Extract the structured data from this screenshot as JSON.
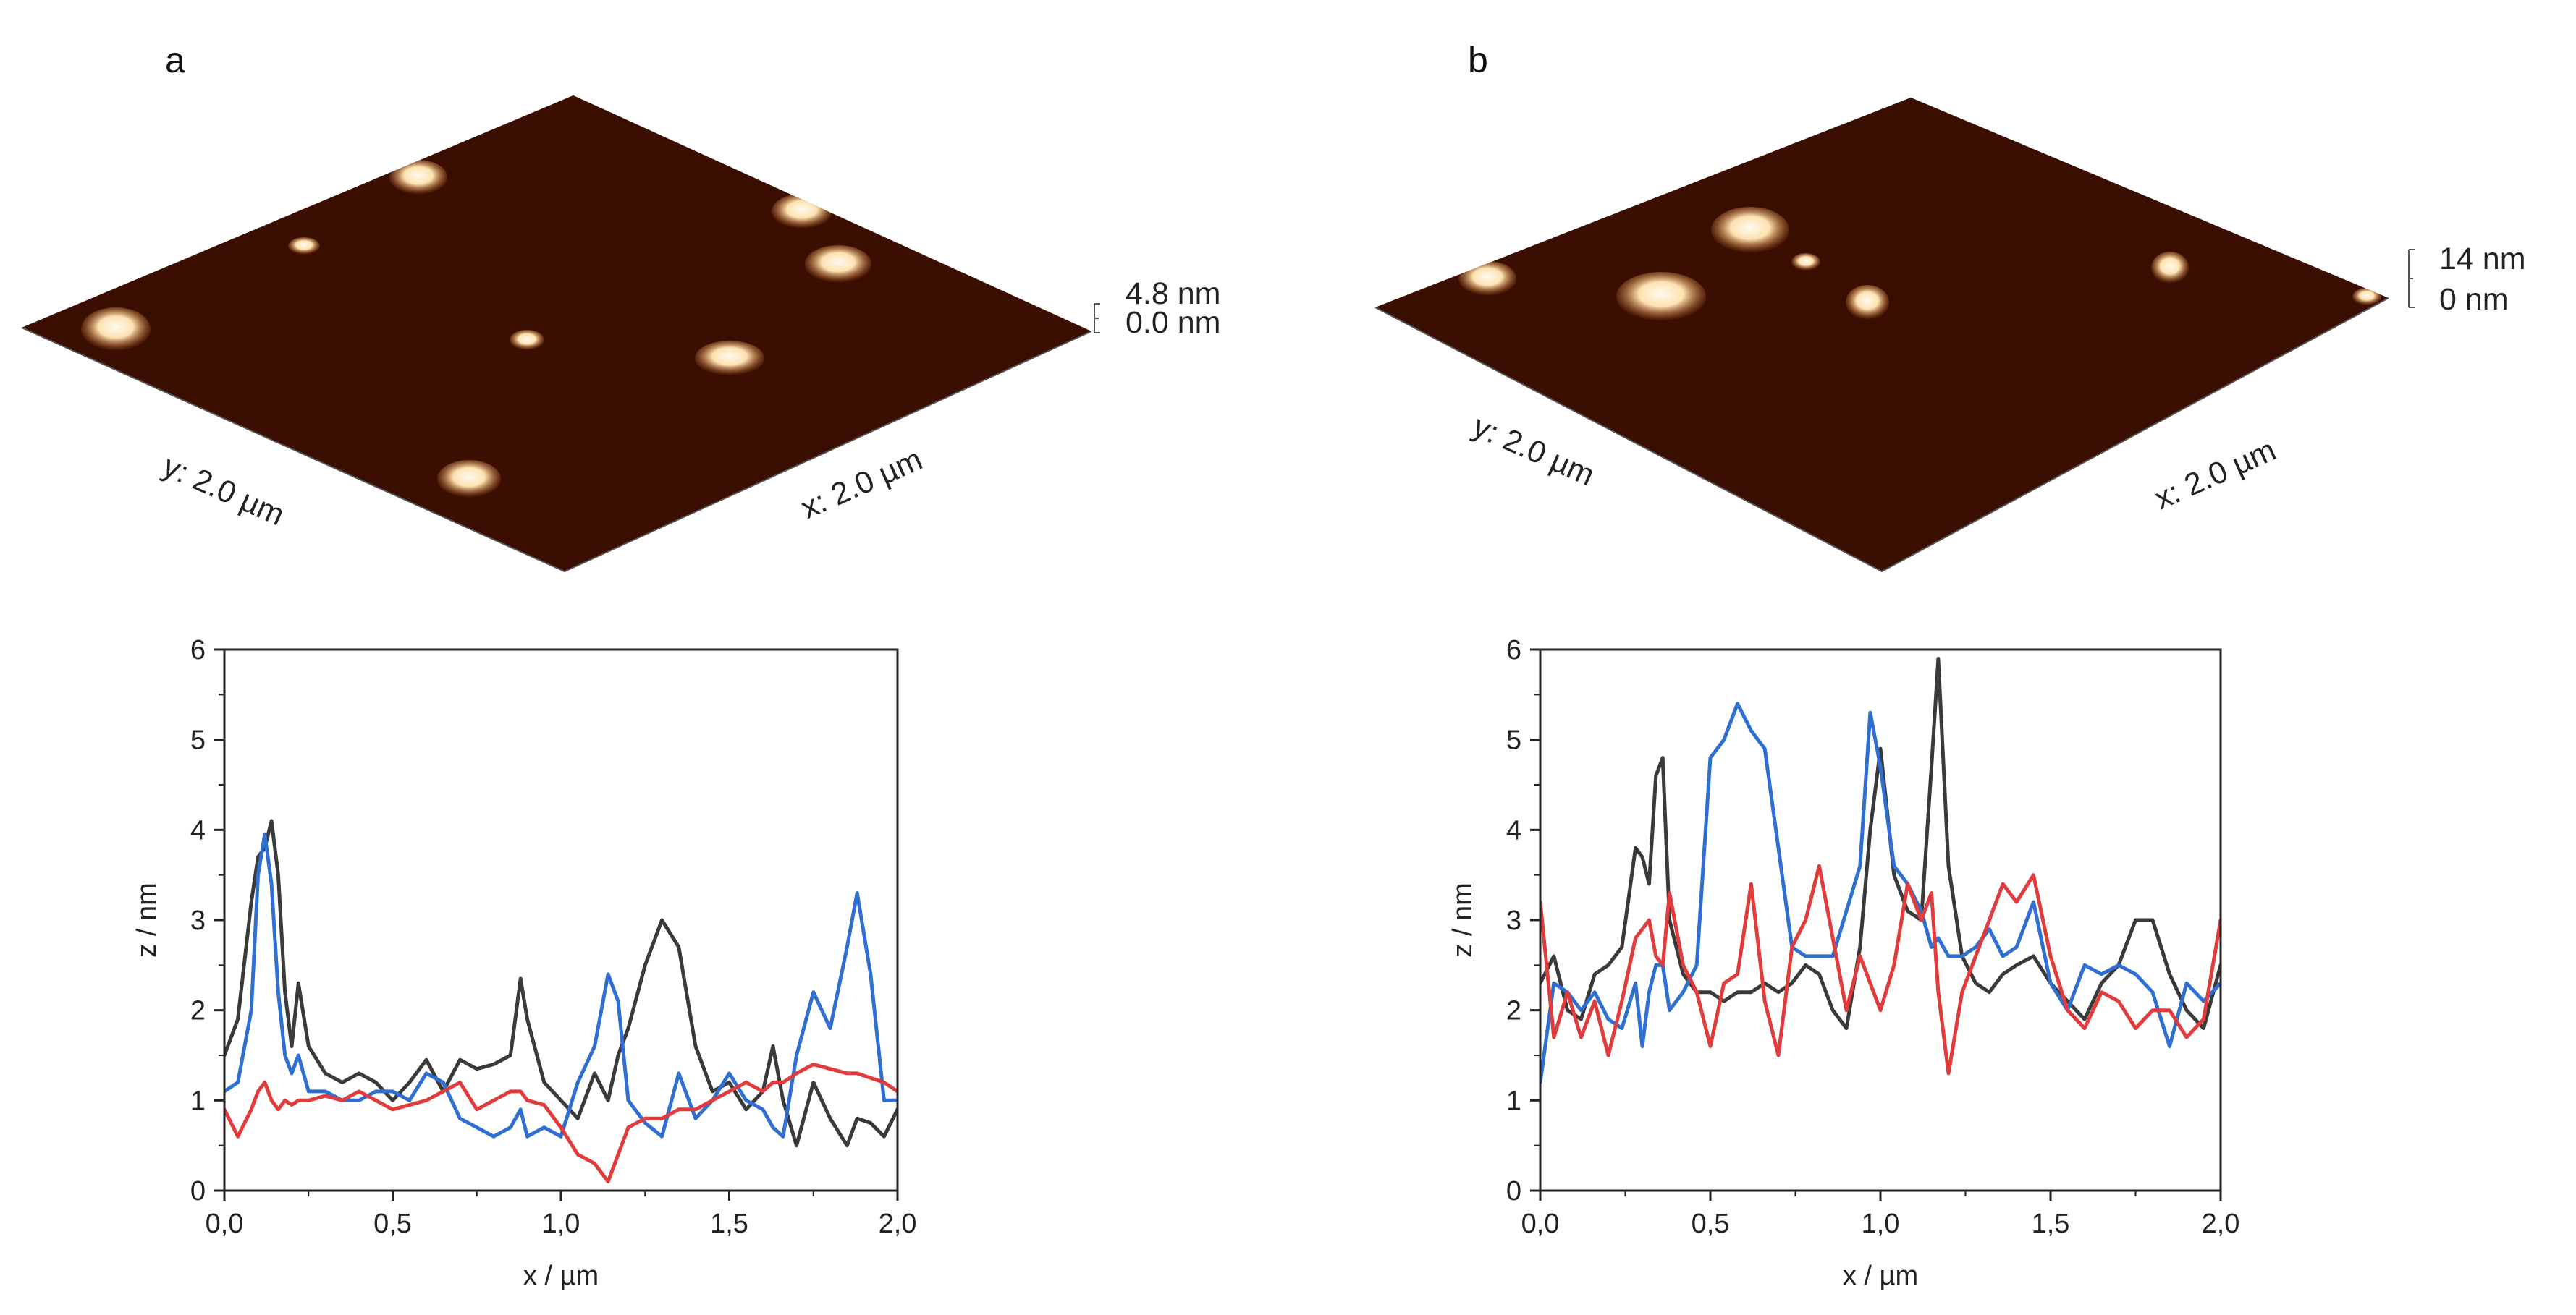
{
  "panels": [
    {
      "label": "a",
      "afm": {
        "x_label": "x: 2.0 µm",
        "y_label": "y: 2.0 µm",
        "z_max_label": "4.8 nm",
        "z_min_label": "0.0 nm",
        "colormap": [
          "#3a0f02",
          "#7a2a06",
          "#b8500f",
          "#d9782e",
          "#f3b56e",
          "#fff1d6"
        ]
      }
    },
    {
      "label": "b",
      "afm": {
        "x_label": "x: 2.0 µm",
        "y_label": "y: 2.0 µm",
        "z_max_label": "14 nm",
        "z_min_label": "0 nm",
        "colormap": [
          "#3a0f02",
          "#7a2a06",
          "#b8500f",
          "#d9782e",
          "#f3b56e",
          "#fff1d6"
        ]
      }
    }
  ],
  "chart_data": [
    {
      "type": "line",
      "panel": "a",
      "xlabel": "x / µm",
      "ylabel": "z / nm",
      "xlim": [
        0.0,
        2.0
      ],
      "ylim": [
        0,
        6
      ],
      "xticks": [
        "0,0",
        "0,5",
        "1,0",
        "1,5",
        "2,0"
      ],
      "yticks": [
        "0",
        "1",
        "2",
        "3",
        "4",
        "5",
        "6"
      ],
      "x": [
        0.0,
        0.04,
        0.08,
        0.1,
        0.12,
        0.14,
        0.16,
        0.18,
        0.2,
        0.22,
        0.25,
        0.3,
        0.35,
        0.4,
        0.45,
        0.5,
        0.55,
        0.6,
        0.65,
        0.7,
        0.75,
        0.8,
        0.85,
        0.88,
        0.9,
        0.95,
        1.0,
        1.05,
        1.1,
        1.14,
        1.17,
        1.2,
        1.25,
        1.3,
        1.35,
        1.4,
        1.45,
        1.5,
        1.55,
        1.6,
        1.63,
        1.66,
        1.7,
        1.75,
        1.8,
        1.85,
        1.88,
        1.92,
        1.96,
        2.0
      ],
      "series": [
        {
          "name": "black",
          "color": "#3a3a3a",
          "values": [
            1.5,
            1.9,
            3.2,
            3.7,
            3.8,
            4.1,
            3.5,
            2.2,
            1.6,
            2.3,
            1.6,
            1.3,
            1.2,
            1.3,
            1.2,
            1.0,
            1.2,
            1.45,
            1.1,
            1.45,
            1.35,
            1.4,
            1.5,
            2.35,
            1.9,
            1.2,
            1.0,
            0.8,
            1.3,
            1.0,
            1.5,
            1.8,
            2.5,
            3.0,
            2.7,
            1.6,
            1.1,
            1.2,
            0.9,
            1.1,
            1.6,
            1.0,
            0.5,
            1.2,
            0.8,
            0.5,
            0.8,
            0.75,
            0.6,
            0.9
          ]
        },
        {
          "name": "blue",
          "color": "#2f6fd1",
          "values": [
            1.1,
            1.2,
            2.0,
            3.5,
            3.95,
            3.4,
            2.2,
            1.5,
            1.3,
            1.5,
            1.1,
            1.1,
            1.0,
            1.0,
            1.1,
            1.1,
            1.0,
            1.3,
            1.2,
            0.8,
            0.7,
            0.6,
            0.7,
            0.9,
            0.6,
            0.7,
            0.6,
            1.2,
            1.6,
            2.4,
            2.1,
            1.0,
            0.75,
            0.6,
            1.3,
            0.8,
            1.0,
            1.3,
            1.0,
            0.9,
            0.7,
            0.6,
            1.5,
            2.2,
            1.8,
            2.7,
            3.3,
            2.4,
            1.0,
            1.0
          ]
        },
        {
          "name": "red",
          "color": "#e23b3b",
          "values": [
            0.9,
            0.6,
            0.9,
            1.1,
            1.2,
            1.0,
            0.9,
            1.0,
            0.95,
            1.0,
            1.0,
            1.05,
            1.0,
            1.1,
            1.0,
            0.9,
            0.95,
            1.0,
            1.1,
            1.2,
            0.9,
            1.0,
            1.1,
            1.1,
            1.0,
            0.95,
            0.7,
            0.4,
            0.3,
            0.1,
            0.4,
            0.7,
            0.8,
            0.8,
            0.9,
            0.9,
            1.0,
            1.1,
            1.2,
            1.1,
            1.2,
            1.2,
            1.3,
            1.4,
            1.35,
            1.3,
            1.3,
            1.25,
            1.2,
            1.1
          ]
        }
      ]
    },
    {
      "type": "line",
      "panel": "b",
      "xlabel": "x / µm",
      "ylabel": "z / nm",
      "xlim": [
        0.0,
        2.0
      ],
      "ylim": [
        0,
        6
      ],
      "xticks": [
        "0,0",
        "0,5",
        "1,0",
        "1,5",
        "2,0"
      ],
      "yticks": [
        "0",
        "1",
        "2",
        "3",
        "4",
        "5",
        "6"
      ],
      "x": [
        0.0,
        0.04,
        0.08,
        0.12,
        0.16,
        0.2,
        0.24,
        0.28,
        0.3,
        0.32,
        0.34,
        0.36,
        0.38,
        0.42,
        0.46,
        0.5,
        0.54,
        0.58,
        0.62,
        0.66,
        0.7,
        0.74,
        0.78,
        0.82,
        0.86,
        0.9,
        0.94,
        0.97,
        1.0,
        1.04,
        1.08,
        1.12,
        1.15,
        1.17,
        1.2,
        1.24,
        1.28,
        1.32,
        1.36,
        1.4,
        1.45,
        1.5,
        1.55,
        1.6,
        1.65,
        1.7,
        1.75,
        1.8,
        1.85,
        1.9,
        1.95,
        2.0
      ],
      "series": [
        {
          "name": "black",
          "color": "#3a3a3a",
          "values": [
            2.3,
            2.6,
            2.0,
            1.9,
            2.4,
            2.5,
            2.7,
            3.8,
            3.7,
            3.4,
            4.6,
            4.8,
            3.0,
            2.4,
            2.2,
            2.2,
            2.1,
            2.2,
            2.2,
            2.3,
            2.2,
            2.3,
            2.5,
            2.4,
            2.0,
            1.8,
            2.7,
            4.0,
            4.9,
            3.5,
            3.1,
            3.0,
            4.7,
            5.9,
            3.6,
            2.6,
            2.3,
            2.2,
            2.4,
            2.5,
            2.6,
            2.3,
            2.1,
            1.9,
            2.3,
            2.5,
            3.0,
            3.0,
            2.4,
            2.0,
            1.8,
            2.5
          ]
        },
        {
          "name": "blue",
          "color": "#2f6fd1",
          "values": [
            1.2,
            2.3,
            2.2,
            2.0,
            2.2,
            1.9,
            1.8,
            2.3,
            1.6,
            2.2,
            2.5,
            2.5,
            2.0,
            2.2,
            2.5,
            4.8,
            5.0,
            5.4,
            5.1,
            4.9,
            3.8,
            2.7,
            2.6,
            2.6,
            2.6,
            3.1,
            3.6,
            5.3,
            4.7,
            3.6,
            3.4,
            3.1,
            2.7,
            2.8,
            2.6,
            2.6,
            2.7,
            2.9,
            2.6,
            2.7,
            3.2,
            2.3,
            2.0,
            2.5,
            2.4,
            2.5,
            2.4,
            2.2,
            1.6,
            2.3,
            2.1,
            2.3
          ]
        },
        {
          "name": "red",
          "color": "#e23b3b",
          "values": [
            3.2,
            1.7,
            2.2,
            1.7,
            2.1,
            1.5,
            2.1,
            2.8,
            2.9,
            3.0,
            2.6,
            2.5,
            3.3,
            2.5,
            2.2,
            1.6,
            2.3,
            2.4,
            3.4,
            2.1,
            1.5,
            2.7,
            3.0,
            3.6,
            2.8,
            2.0,
            2.6,
            2.3,
            2.0,
            2.5,
            3.4,
            3.0,
            3.3,
            2.2,
            1.3,
            2.2,
            2.6,
            3.0,
            3.4,
            3.2,
            3.5,
            2.6,
            2.0,
            1.8,
            2.2,
            2.1,
            1.8,
            2.0,
            2.0,
            1.7,
            1.9,
            3.0
          ]
        }
      ]
    }
  ]
}
